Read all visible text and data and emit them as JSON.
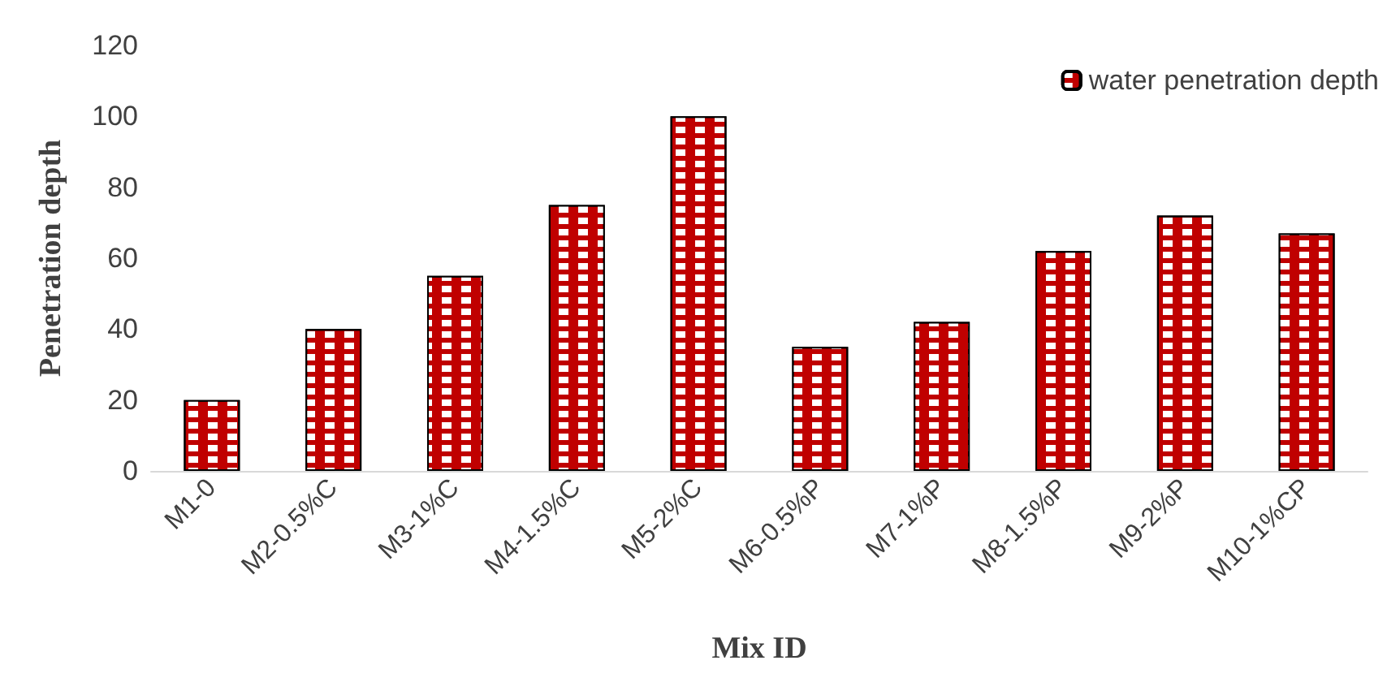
{
  "chart_data": {
    "type": "bar",
    "xlabel": "Mix ID",
    "ylabel": "Penetration depth",
    "categories": [
      "M1-0",
      "M2-0.5%C",
      "M3-1%C",
      "M4-1.5%C",
      "M5-2%C",
      "M6-0.5%P",
      "M7-1%P",
      "M8-1.5%P",
      "M9-2%P",
      "M10-1%CP"
    ],
    "series": [
      {
        "name": "water penetration depth",
        "color": "#c00000",
        "values": [
          20,
          40,
          55,
          75,
          100,
          35,
          42,
          62,
          72,
          67
        ]
      }
    ],
    "ylim": [
      0,
      120
    ],
    "yticks": [
      0,
      20,
      40,
      60,
      80,
      100,
      120
    ],
    "grid": false,
    "legend": "top right"
  }
}
